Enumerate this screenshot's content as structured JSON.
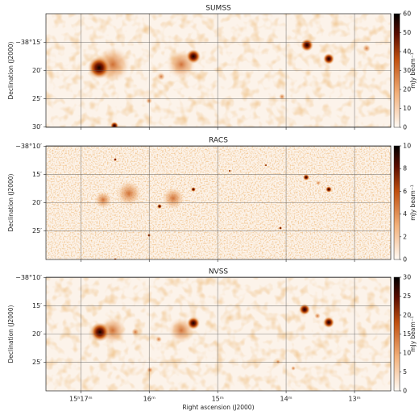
{
  "chart_data": [
    {
      "type": "image",
      "title": "SUMSS",
      "ylabel": "Declination (J2000)",
      "colorbar_label": "mJy beam⁻¹",
      "ylim": [
        -9.9,
        -30.1
      ],
      "yticks": [
        {
          "value": -15,
          "label": "−38°15′"
        },
        {
          "value": -20,
          "label": "20′"
        },
        {
          "value": -25,
          "label": "25′"
        },
        {
          "value": -30,
          "label": "30′"
        }
      ],
      "clim": [
        0,
        60
      ],
      "cticks": [
        0,
        10,
        20,
        30,
        40,
        50,
        60
      ],
      "grid": true
    },
    {
      "type": "image",
      "title": "RACS",
      "ylabel": "Declination (J2000)",
      "colorbar_label": "mJy beam⁻¹",
      "ylim": [
        -9.9,
        -30.1
      ],
      "yticks": [
        {
          "value": -10,
          "label": "−38°10′"
        },
        {
          "value": -15,
          "label": "15′"
        },
        {
          "value": -20,
          "label": "20′"
        },
        {
          "value": -25,
          "label": "25′"
        }
      ],
      "clim": [
        0,
        10
      ],
      "cticks": [
        0,
        2,
        4,
        6,
        8,
        10
      ],
      "grid": true
    },
    {
      "type": "image",
      "title": "NVSS",
      "ylabel": "Declination (J2000)",
      "xlabel": "Right ascension (J2000)",
      "colorbar_label": "mJy beam⁻¹",
      "xlim": [
        17.51,
        12.47
      ],
      "xticks": [
        {
          "value": 17,
          "label": "15ʰ17ᵐ"
        },
        {
          "value": 16,
          "label": "16ᵐ"
        },
        {
          "value": 15,
          "label": "15ᵐ"
        },
        {
          "value": 14,
          "label": "14ᵐ"
        },
        {
          "value": 13,
          "label": "13ᵐ"
        }
      ],
      "ylim": [
        -9.9,
        -30.1
      ],
      "yticks": [
        {
          "value": -10,
          "label": "−38°10′"
        },
        {
          "value": -15,
          "label": "15′"
        },
        {
          "value": -20,
          "label": "20′"
        },
        {
          "value": -25,
          "label": "25′"
        }
      ],
      "clim": [
        0,
        30
      ],
      "cticks": [
        0,
        5,
        10,
        15,
        20,
        25,
        30
      ],
      "grid": true
    }
  ]
}
